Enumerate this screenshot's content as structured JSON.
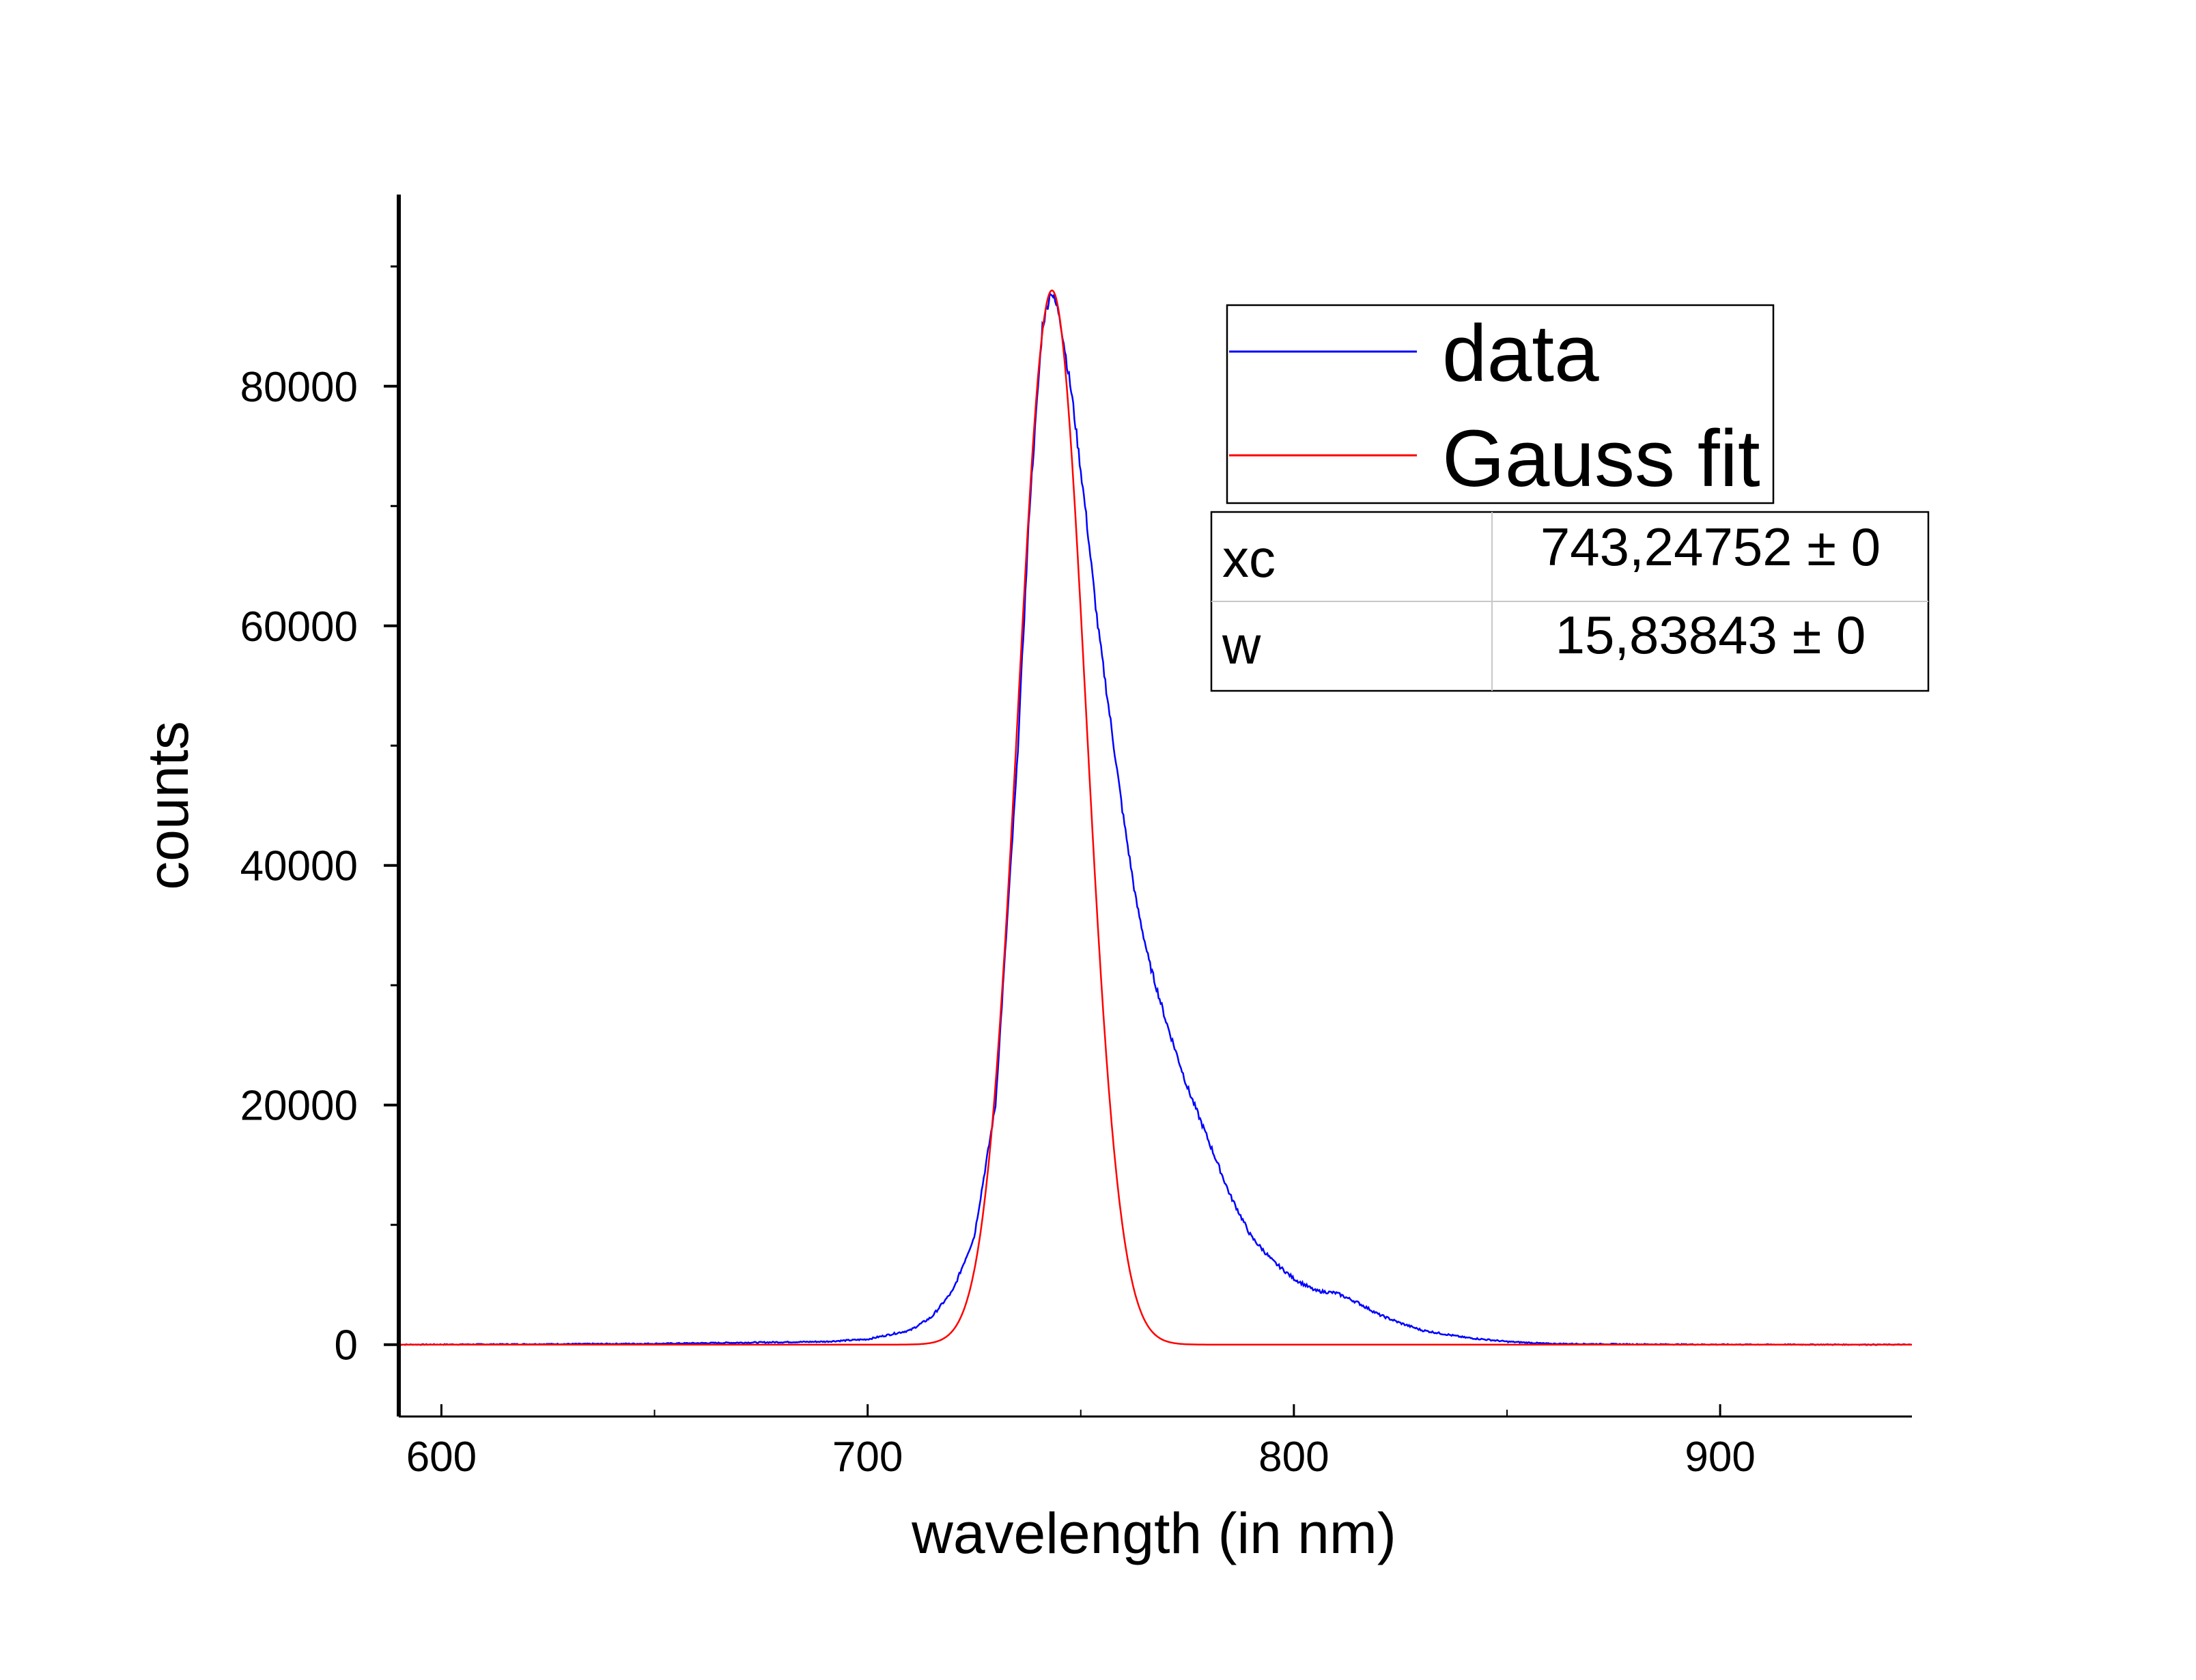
{
  "chart_data": {
    "type": "line",
    "title": "",
    "xlabel": "wavelength (in nm)",
    "ylabel": "counts",
    "xlim": [
      590,
      945
    ],
    "ylim": [
      -6000,
      96000
    ],
    "x_ticks": [
      600,
      700,
      800,
      900
    ],
    "x_tick_labels": [
      "600",
      "700",
      "800",
      "900"
    ],
    "y_ticks": [
      0,
      20000,
      40000,
      60000,
      80000
    ],
    "y_tick_labels": [
      "0",
      "20000",
      "40000",
      "60000",
      "80000"
    ],
    "grid": false,
    "legend_position": "top-right",
    "series": [
      {
        "name": "data",
        "color": "#0000ff",
        "x": [
          590,
          650,
          690,
          700,
          710,
          715,
          720,
          725,
          730,
          735,
          738,
          741,
          743,
          745,
          748,
          751,
          754,
          757,
          760,
          763,
          766,
          770,
          775,
          780,
          785,
          790,
          795,
          800,
          805,
          810,
          815,
          820,
          825,
          830,
          840,
          850,
          860,
          880,
          900,
          945
        ],
        "y": [
          0,
          80,
          250,
          450,
          1200,
          2300,
          4500,
          9000,
          20000,
          48000,
          70000,
          85000,
          88000,
          86000,
          79000,
          70000,
          60000,
          52000,
          44000,
          37000,
          32000,
          27000,
          21500,
          17000,
          12500,
          9000,
          7000,
          5500,
          4500,
          4300,
          3500,
          2500,
          1800,
          1200,
          600,
          250,
          80,
          30,
          10,
          0
        ]
      },
      {
        "name": "Gauss fit",
        "color": "#ff0000",
        "model": "gauss",
        "xc": 743.24752,
        "w": 15.83843,
        "amplitude": 88000,
        "offset": 0
      }
    ],
    "fit_parameters": [
      {
        "name": "xc",
        "value": "743,24752 ± 0"
      },
      {
        "name": "w",
        "value": "15,83843 ± 0"
      }
    ]
  }
}
